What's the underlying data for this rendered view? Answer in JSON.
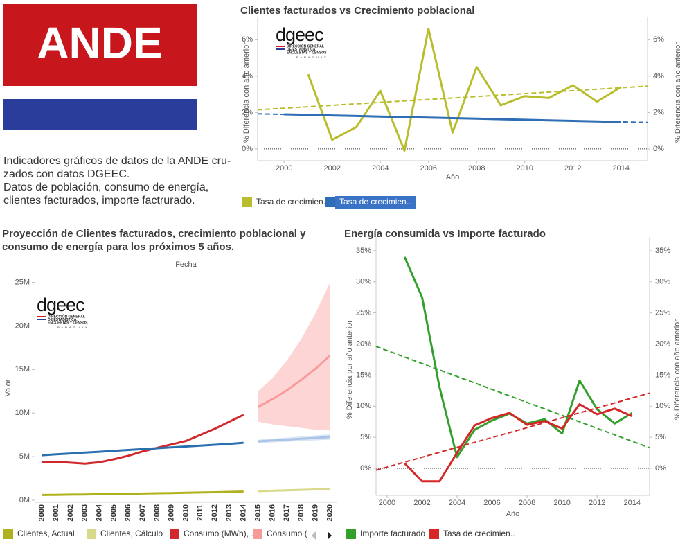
{
  "header": {
    "logo_text": "ANDE",
    "description": [
      "Indicadores gráficos de datos de la ANDE cru-",
      "zados con datos DGEEC.",
      "Datos de población, consumo de energía,",
      "clientes facturados, importe factrurado."
    ]
  },
  "logos": {
    "dgeec": {
      "name": "dgeec",
      "lines": [
        "DIRECCIÓN GENERAL",
        "DE ESTADÍSTICA,",
        "ENCUESTAS Y CENSOS"
      ],
      "country": "PARAGUAY"
    }
  },
  "chart_data": [
    {
      "type": "line",
      "title": [
        "Clientes facturados vs Crecimiento poblacional"
      ],
      "xlabel": "Año",
      "ylabel": "% Diferencia con año anterior",
      "y2label": "% Diferencia con año anterior",
      "xlim": [
        1998.9,
        2015.1
      ],
      "xticks": [
        2000,
        2002,
        2004,
        2006,
        2008,
        2010,
        2012,
        2014
      ],
      "ylim": [
        -0.65,
        6.85
      ],
      "yticks": [
        {
          "value": 0,
          "label": "0%"
        },
        {
          "value": 2,
          "label": "2%"
        },
        {
          "value": 4,
          "label": "4%"
        },
        {
          "value": 6,
          "label": "6%"
        }
      ],
      "y2lim": [
        -0.65,
        6.85
      ],
      "y2ticks": [
        {
          "value": 0,
          "label": "0%"
        },
        {
          "value": 2,
          "label": "2%"
        },
        {
          "value": 4,
          "label": "4%"
        },
        {
          "value": 6,
          "label": "6%"
        }
      ],
      "zero_line": true,
      "series": [
        {
          "name": "Tasa de crecimien..",
          "color": "#b7bd2c",
          "x": [
            2001,
            2002,
            2003,
            2004,
            2005,
            2006,
            2007,
            2008,
            2009,
            2010,
            2011,
            2012,
            2013,
            2014
          ],
          "values": [
            4.1,
            0.5,
            1.2,
            3.2,
            -0.1,
            6.6,
            0.9,
            4.5,
            2.4,
            2.9,
            2.8,
            3.5,
            2.6,
            3.4
          ],
          "trend": {
            "x": [
              1998.9,
              2015.1
            ],
            "values": [
              2.15,
              3.45
            ]
          }
        },
        {
          "name": "Tasa de crecimien..",
          "color": "#2f6eb5",
          "highlighted": true,
          "x": [
            2000,
            2001,
            2002,
            2003,
            2004,
            2005,
            2006,
            2007,
            2008,
            2009,
            2010,
            2011,
            2012,
            2013,
            2014
          ],
          "values": [
            1.9,
            1.87,
            1.84,
            1.81,
            1.78,
            1.75,
            1.72,
            1.69,
            1.66,
            1.63,
            1.6,
            1.57,
            1.54,
            1.51,
            1.48
          ],
          "trend": {
            "x": [
              1998.9,
              2015.1
            ],
            "values": [
              1.93,
              1.45
            ]
          }
        }
      ]
    },
    {
      "type": "line",
      "title": [
        "Proyección de Clientes facturados, crecimiento poblacional y",
        "consumo de energía para los próximos 5 años."
      ],
      "xlabel": "Fecha",
      "ylabel": "Valor",
      "categories": [
        "2000",
        "2001",
        "2002",
        "2003",
        "2004",
        "2005",
        "2006",
        "2007",
        "2008",
        "2009",
        "2010",
        "2011",
        "2012",
        "2013",
        "2014",
        "2015",
        "2016",
        "2017",
        "2018",
        "2019",
        "2020"
      ],
      "ylim": [
        -240000,
        26000000
      ],
      "yticks": [
        {
          "value": 0,
          "label": "0M"
        },
        {
          "value": 5000000,
          "label": "5M"
        },
        {
          "value": 10000000,
          "label": "10M"
        },
        {
          "value": 15000000,
          "label": "15M"
        },
        {
          "value": 20000000,
          "label": "20M"
        },
        {
          "value": 25000000,
          "label": "25M"
        }
      ],
      "series": [
        {
          "name": "Clientes, Actual",
          "color": "#afb21e",
          "values": [
            600000,
            620000,
            640000,
            660000,
            680000,
            700000,
            730000,
            760000,
            790000,
            820000,
            850000,
            880000,
            910000,
            950000,
            990000,
            null,
            null,
            null,
            null,
            null,
            null
          ]
        },
        {
          "name": "Clientes, Cálculo",
          "color": "#d9d98c",
          "values": [
            null,
            null,
            null,
            null,
            null,
            null,
            null,
            null,
            null,
            null,
            null,
            null,
            null,
            null,
            null,
            1030000,
            1080000,
            1130000,
            1180000,
            1230000,
            1290000
          ]
        },
        {
          "name": "Consumo (MWh), ..",
          "color": "#d0282c",
          "values": [
            4370000,
            4400000,
            4300000,
            4200000,
            4350000,
            4700000,
            5100000,
            5600000,
            6000000,
            6400000,
            6800000,
            7500000,
            8200000,
            9000000,
            9800000,
            null,
            null,
            null,
            null,
            null,
            null
          ]
        },
        {
          "name": "Consumo (",
          "color": "#f79a9a",
          "band_color": "#fdd5d5",
          "values": [
            null,
            null,
            null,
            null,
            null,
            null,
            null,
            null,
            null,
            null,
            null,
            null,
            null,
            null,
            null,
            10700000,
            11600000,
            12600000,
            13800000,
            15100000,
            16600000
          ],
          "band": {
            "upper": [
              null,
              null,
              null,
              null,
              null,
              null,
              null,
              null,
              null,
              null,
              null,
              null,
              null,
              null,
              null,
              12500000,
              14000000,
              16000000,
              18500000,
              21500000,
              25000000
            ],
            "lower": [
              null,
              null,
              null,
              null,
              null,
              null,
              null,
              null,
              null,
              null,
              null,
              null,
              null,
              null,
              null,
              9000000,
              8700000,
              8500000,
              8300000,
              8100000,
              8000000
            ]
          }
        },
        {
          "color": "#2a6fb0",
          "values": [
            5160000,
            5260000,
            5360000,
            5460000,
            5560000,
            5660000,
            5760000,
            5860000,
            5960000,
            6060000,
            6160000,
            6260000,
            6360000,
            6460000,
            6590000,
            null,
            null,
            null,
            null,
            null,
            null
          ]
        },
        {
          "color": "#a9c4e8",
          "band_color": "#dbe6f5",
          "values": [
            null,
            null,
            null,
            null,
            null,
            null,
            null,
            null,
            null,
            null,
            null,
            null,
            null,
            null,
            null,
            6750000,
            6850000,
            6950000,
            7050000,
            7150000,
            7250000
          ],
          "band": {
            "upper": [
              null,
              null,
              null,
              null,
              null,
              null,
              null,
              null,
              null,
              null,
              null,
              null,
              null,
              null,
              null,
              6950000,
              7070000,
              7190000,
              7310000,
              7430000,
              7550000
            ],
            "lower": [
              null,
              null,
              null,
              null,
              null,
              null,
              null,
              null,
              null,
              null,
              null,
              null,
              null,
              null,
              null,
              6550000,
              6630000,
              6710000,
              6790000,
              6870000,
              6950000
            ]
          }
        }
      ]
    },
    {
      "type": "line",
      "title": [
        "Energía consumida vs Importe facturado"
      ],
      "xlabel": "Año",
      "ylabel": "% Diferencia por año anterior",
      "y2label": "% Diferencia con año anterior",
      "xlim": [
        1999.37,
        2015.0
      ],
      "xticks": [
        2000,
        2002,
        2004,
        2006,
        2008,
        2010,
        2012,
        2014
      ],
      "ylim": [
        -4.35,
        36.1
      ],
      "yticks": [
        {
          "value": 0,
          "label": "0%"
        },
        {
          "value": 5,
          "label": "5%"
        },
        {
          "value": 10,
          "label": "10%"
        },
        {
          "value": 15,
          "label": "15%"
        },
        {
          "value": 20,
          "label": "20%"
        },
        {
          "value": 25,
          "label": "25%"
        },
        {
          "value": 30,
          "label": "30%"
        },
        {
          "value": 35,
          "label": "35%"
        }
      ],
      "y2lim": [
        -4.35,
        36.1
      ],
      "y2ticks": [
        {
          "value": 0,
          "label": "0%"
        },
        {
          "value": 5,
          "label": "5%"
        },
        {
          "value": 10,
          "label": "10%"
        },
        {
          "value": 15,
          "label": "15%"
        },
        {
          "value": 20,
          "label": "20%"
        },
        {
          "value": 25,
          "label": "25%"
        },
        {
          "value": 30,
          "label": "30%"
        },
        {
          "value": 35,
          "label": "35%"
        }
      ],
      "zero_line": true,
      "series": [
        {
          "name": "Importe facturado",
          "color": "#33a02c",
          "x": [
            2001,
            2002,
            2003,
            2004,
            2005,
            2006,
            2007,
            2008,
            2009,
            2010,
            2011,
            2012,
            2013,
            2014
          ],
          "values": [
            34.0,
            27.5,
            13.0,
            1.8,
            6.2,
            7.7,
            8.8,
            7.2,
            7.9,
            5.6,
            14.1,
            9.5,
            7.2,
            8.9
          ],
          "trend": {
            "x": [
              1999.37,
              2015.0
            ],
            "values": [
              19.6,
              3.3
            ]
          }
        },
        {
          "name": "Tasa de crecimien..",
          "color": "#d62728",
          "x": [
            2001,
            2002,
            2003,
            2004,
            2005,
            2006,
            2007,
            2008,
            2009,
            2010,
            2011,
            2012,
            2013,
            2014
          ],
          "values": [
            0.8,
            -2.1,
            -2.1,
            2.5,
            6.9,
            8.1,
            8.9,
            7.0,
            7.6,
            6.4,
            10.3,
            8.7,
            9.6,
            8.4
          ],
          "trend": {
            "x": [
              1999.37,
              2015.0
            ],
            "values": [
              -0.3,
              12.1
            ]
          }
        }
      ]
    }
  ]
}
